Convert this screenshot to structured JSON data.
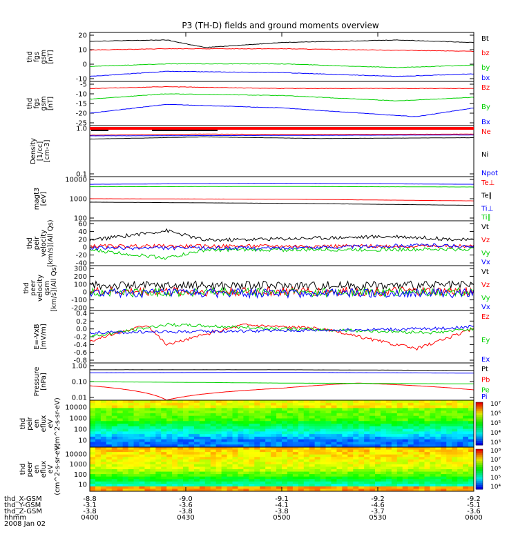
{
  "title": "P3 (TH-D) fields and ground moments overview",
  "colors": {
    "black": "#000000",
    "red": "#ff0000",
    "green": "#00d000",
    "blue": "#0000ff"
  },
  "chart_data": [
    {
      "type": "line",
      "ylabel": [
        "thd",
        "fgs",
        "gsm",
        "[nT]"
      ],
      "yticks": [
        "20",
        "10",
        "0",
        "-10"
      ],
      "ylim": [
        -17,
        22
      ],
      "series": [
        {
          "name": "Bt",
          "color": "black",
          "approx": [
            [
              0,
              15
            ],
            [
              0.2,
              16
            ],
            [
              0.3,
              10
            ],
            [
              0.5,
              14
            ],
            [
              0.8,
              16
            ],
            [
              1,
              14
            ]
          ]
        },
        {
          "name": "bz",
          "color": "red",
          "approx": [
            [
              0,
              8
            ],
            [
              0.2,
              9
            ],
            [
              0.5,
              9
            ],
            [
              1,
              7
            ]
          ]
        },
        {
          "name": "by",
          "color": "green",
          "approx": [
            [
              0,
              -5
            ],
            [
              0.2,
              -3
            ],
            [
              0.5,
              -3
            ],
            [
              0.8,
              -6
            ],
            [
              1,
              -4
            ]
          ]
        },
        {
          "name": "bx",
          "color": "blue",
          "approx": [
            [
              0,
              -13
            ],
            [
              0.2,
              -9
            ],
            [
              0.5,
              -10
            ],
            [
              0.8,
              -13
            ],
            [
              1,
              -11
            ]
          ]
        }
      ]
    },
    {
      "type": "line",
      "ylabel": [
        "thd",
        "fgs",
        "gsm",
        "[nT]"
      ],
      "yticks": [
        "-5",
        "-10",
        "-15",
        "-20",
        "-25"
      ],
      "ylim": [
        -27,
        -2
      ],
      "series": [
        {
          "name": "Bz",
          "color": "red",
          "approx": [
            [
              0,
              -6
            ],
            [
              0.2,
              -5
            ],
            [
              0.5,
              -6
            ],
            [
              1,
              -6
            ]
          ]
        },
        {
          "name": "By",
          "color": "green",
          "approx": [
            [
              0,
              -12
            ],
            [
              0.2,
              -9
            ],
            [
              0.5,
              -10
            ],
            [
              0.8,
              -13
            ],
            [
              1,
              -11
            ]
          ]
        },
        {
          "name": "Bx",
          "color": "blue",
          "approx": [
            [
              0,
              -20
            ],
            [
              0.2,
              -15
            ],
            [
              0.5,
              -17
            ],
            [
              0.85,
              -22
            ],
            [
              1,
              -17
            ]
          ]
        }
      ]
    },
    {
      "type": "line",
      "yscale": "log",
      "ylabel": [
        "Density",
        "[1/cc]",
        "[cm-3]"
      ],
      "yticks": [
        "1.0",
        "0.1"
      ],
      "ylim": [
        0.07,
        1.3
      ],
      "series": [
        {
          "name": "Ne",
          "color": "red",
          "approx": [
            [
              0,
              0.75
            ],
            [
              0.3,
              0.8
            ],
            [
              0.6,
              0.78
            ],
            [
              1,
              0.8
            ]
          ]
        },
        {
          "name": "Ni",
          "color": "black",
          "approx": [
            [
              0,
              0.6
            ],
            [
              0.3,
              0.68
            ],
            [
              0.6,
              0.62
            ],
            [
              1,
              0.65
            ]
          ]
        },
        {
          "name": "Npot",
          "color": "blue",
          "approx": [
            [
              0,
              0.72
            ],
            [
              0.5,
              0.74
            ],
            [
              1,
              0.76
            ]
          ]
        }
      ]
    },
    {
      "type": "line",
      "yscale": "log",
      "ylabel": [
        "magt3",
        "[eV]"
      ],
      "yticks": [
        "10000",
        "1000",
        "100"
      ],
      "ylim": [
        100,
        10000
      ],
      "series": [
        {
          "name": "Te⊥",
          "color": "red",
          "approx": [
            [
              0,
              1000
            ],
            [
              0.5,
              950
            ],
            [
              1,
              800
            ]
          ]
        },
        {
          "name": "Te∥",
          "color": "black",
          "approx": [
            [
              0,
              700
            ],
            [
              0.5,
              620
            ],
            [
              1,
              500
            ]
          ]
        },
        {
          "name": "Ti⊥",
          "color": "blue",
          "approx": [
            [
              0,
              4500
            ],
            [
              0.5,
              5000
            ],
            [
              1,
              4500
            ]
          ]
        },
        {
          "name": "Ti∥",
          "color": "green",
          "approx": [
            [
              0,
              3500
            ],
            [
              0.5,
              3600
            ],
            [
              1,
              3400
            ]
          ]
        }
      ]
    },
    {
      "type": "line",
      "ylabel": [
        "thd",
        "peir",
        "velocity",
        "[km/s](All Qs)"
      ],
      "yticks": [
        "60",
        "40",
        "20",
        "0",
        "-20",
        "-40"
      ],
      "ylim": [
        -45,
        70
      ],
      "series": [
        {
          "name": "Vt",
          "color": "black",
          "approx": [
            [
              0,
              20
            ],
            [
              0.2,
              45
            ],
            [
              0.3,
              20
            ],
            [
              0.8,
              30
            ],
            [
              1,
              20
            ]
          ]
        },
        {
          "name": "Vz",
          "color": "red",
          "approx": [
            [
              0,
              5
            ],
            [
              0.5,
              5
            ],
            [
              1,
              5
            ]
          ]
        },
        {
          "name": "Vy",
          "color": "green",
          "approx": [
            [
              0,
              -5
            ],
            [
              0.2,
              -25
            ],
            [
              0.3,
              -5
            ],
            [
              1,
              -3
            ]
          ]
        },
        {
          "name": "Vx",
          "color": "blue",
          "approx": [
            [
              0,
              0
            ],
            [
              0.5,
              0
            ],
            [
              0.9,
              8
            ],
            [
              1,
              2
            ]
          ]
        }
      ]
    },
    {
      "type": "line",
      "ylabel": [
        "thd",
        "peer",
        "velocity",
        "gsm",
        "[km/s](All Qs)"
      ],
      "yticks": [
        "300",
        "200",
        "100",
        "0",
        "-100",
        "-200"
      ],
      "ylim": [
        -210,
        310
      ],
      "series": [
        {
          "name": "Vt",
          "color": "black",
          "approx": [
            [
              0,
              80
            ],
            [
              0.5,
              80
            ],
            [
              1,
              80
            ]
          ]
        },
        {
          "name": "Vz",
          "color": "red",
          "approx": [
            [
              0,
              10
            ],
            [
              0.5,
              10
            ],
            [
              1,
              10
            ]
          ]
        },
        {
          "name": "Vy",
          "color": "green",
          "approx": [
            [
              0,
              0
            ],
            [
              0.5,
              0
            ],
            [
              1,
              0
            ]
          ]
        },
        {
          "name": "Vx",
          "color": "blue",
          "approx": [
            [
              0,
              -10
            ],
            [
              0.5,
              -10
            ],
            [
              1,
              -10
            ]
          ]
        }
      ]
    },
    {
      "type": "line",
      "ylabel": [
        "E=-VxB",
        "[mV/m]"
      ],
      "yticks": [
        "0.4",
        "0.2",
        "0.0",
        "-0.2",
        "-0.4",
        "-0.6",
        "-0.8"
      ],
      "ylim": [
        -0.85,
        0.45
      ],
      "series": [
        {
          "name": "Ez",
          "color": "red",
          "approx": [
            [
              0,
              -0.3
            ],
            [
              0.15,
              0.1
            ],
            [
              0.2,
              -0.4
            ],
            [
              0.4,
              0.1
            ],
            [
              0.6,
              0.0
            ],
            [
              0.85,
              -0.5
            ],
            [
              1,
              0.0
            ]
          ]
        },
        {
          "name": "Ey",
          "color": "green",
          "approx": [
            [
              0,
              -0.2
            ],
            [
              0.2,
              0.1
            ],
            [
              0.5,
              0.0
            ],
            [
              0.9,
              -0.1
            ],
            [
              1,
              0.0
            ]
          ]
        },
        {
          "name": "Ex",
          "color": "blue",
          "approx": [
            [
              0,
              -0.1
            ],
            [
              0.5,
              -0.05
            ],
            [
              0.9,
              0.0
            ],
            [
              1,
              0.05
            ]
          ]
        }
      ]
    },
    {
      "type": "line",
      "yscale": "log",
      "ylabel": [
        "Pressure",
        "[nPa]"
      ],
      "yticks": [
        "1.00",
        "0.10",
        "0.01"
      ],
      "ylim": [
        0.01,
        1.5
      ],
      "series": [
        {
          "name": "Pt",
          "color": "black",
          "approx": [
            [
              0,
              0.6
            ],
            [
              0.5,
              0.6
            ],
            [
              1,
              0.55
            ]
          ]
        },
        {
          "name": "Pb",
          "color": "red",
          "approx": [
            [
              0,
              0.07
            ],
            [
              0.2,
              0.01
            ],
            [
              0.5,
              0.05
            ],
            [
              0.7,
              0.1
            ],
            [
              1,
              0.04
            ]
          ]
        },
        {
          "name": "Pe",
          "color": "green",
          "approx": [
            [
              0,
              0.12
            ],
            [
              0.5,
              0.1
            ],
            [
              1,
              0.09
            ]
          ]
        },
        {
          "name": "Pi",
          "color": "blue",
          "approx": [
            [
              0,
              0.4
            ],
            [
              0.5,
              0.42
            ],
            [
              1,
              0.38
            ]
          ]
        }
      ]
    },
    {
      "type": "heatmap",
      "ylabel": [
        "thd",
        "peir",
        "en",
        "eflux",
        "eV",
        "(cm^2-s-sr-eV)"
      ],
      "yticks": [
        "10000",
        "1000",
        "100",
        "10"
      ],
      "colorbar_ticks": [
        "10⁷",
        "10⁶",
        "10⁵",
        "10⁴",
        "10³"
      ]
    },
    {
      "type": "heatmap",
      "ylabel": [
        "thd",
        "peer",
        "en",
        "eflux",
        "eV",
        "(cm^2-s-sr-eV)"
      ],
      "yticks": [
        "10000",
        "1000",
        "100",
        "10"
      ],
      "colorbar_ticks": [
        "10⁸",
        "10⁷",
        "10⁶",
        "10⁵",
        "10⁴"
      ]
    }
  ],
  "xaxis": {
    "rows": [
      {
        "label": "thd_X-GSM",
        "values": [
          "-8.8",
          "-9.0",
          "-9.1",
          "-9.2",
          "-9.2"
        ]
      },
      {
        "label": "thd_Y-GSM",
        "values": [
          "-3.1",
          "-3.6",
          "-4.1",
          "-4.6",
          "-5.1"
        ]
      },
      {
        "label": "thd_Z-GSM",
        "values": [
          "-3.8",
          "-3.8",
          "-3.8",
          "-3.7",
          "-3.6"
        ]
      },
      {
        "label": "hhmm",
        "values": [
          "0400",
          "0430",
          "0500",
          "0530",
          "0600"
        ]
      }
    ],
    "date": "2008 Jan 02"
  }
}
